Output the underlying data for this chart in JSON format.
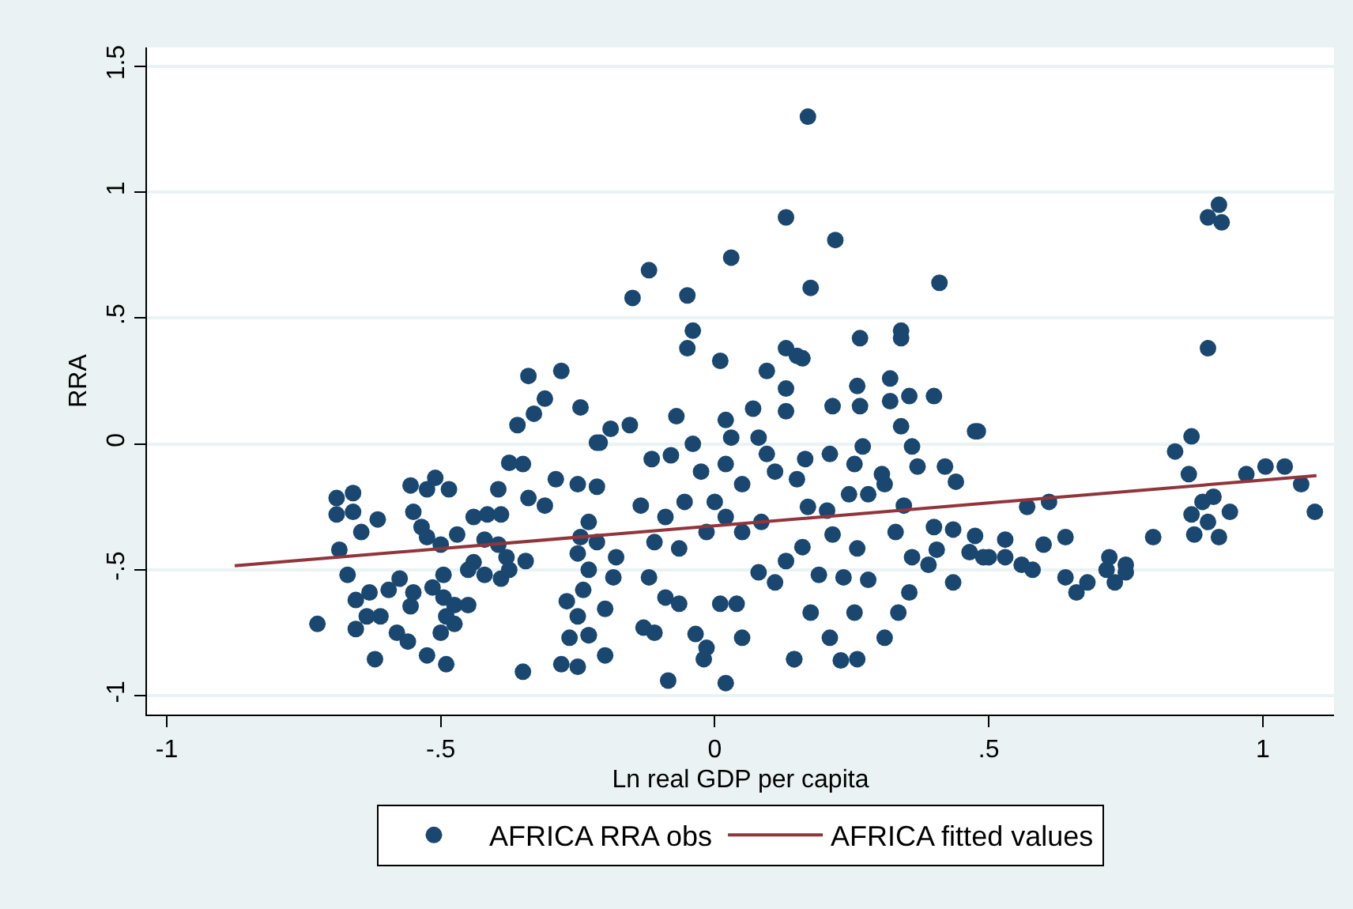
{
  "chart_data": {
    "type": "scatter",
    "xlabel": "Ln real GDP per capita",
    "ylabel": "RRA",
    "xlim": [
      -1.036,
      1.13
    ],
    "ylim": [
      -1.075,
      1.575
    ],
    "xticks": [
      -1,
      {
        "value": -0.5,
        "label": "-.5"
      },
      0,
      {
        "value": 0.5,
        "label": ".5"
      },
      1
    ],
    "yticks": [
      -1,
      {
        "value": -0.5,
        "label": "-.5"
      },
      0,
      {
        "value": 0.5,
        "label": ".5"
      },
      1,
      1.5
    ],
    "grid": "y",
    "legend": "bottom",
    "series": [
      {
        "name": "AFRICA RRA obs",
        "marker": "circle",
        "color": "#1a476f",
        "x": [
          0.92,
          0.9,
          0.925,
          0.9,
          0.48,
          0.87,
          0.84,
          0.865,
          0.97,
          1.005,
          1.04,
          1.07,
          1.095,
          0.89,
          0.91,
          0.87,
          0.94,
          0.9,
          0.875,
          0.92,
          0.8,
          0.57,
          0.61,
          0.53,
          0.5,
          0.53,
          0.56,
          0.58,
          0.6,
          0.64,
          0.64,
          0.66,
          0.68,
          0.72,
          0.715,
          0.73,
          0.75,
          0.75,
          0.22,
          0.175,
          0.41,
          0.265,
          0.34,
          0.34,
          0.26,
          0.32,
          0.215,
          0.265,
          0.32,
          0.355,
          0.4,
          0.34,
          0.475,
          0.16,
          0.27,
          0.36,
          0.21,
          0.42,
          0.44,
          0.37,
          0.305,
          0.245,
          0.17,
          0.28,
          0.4,
          0.435,
          0.405,
          0.39,
          0.435,
          0.475,
          0.465,
          0.49,
          0.355,
          0.335,
          0.31,
          0.26,
          0.23,
          0.21,
          0.145,
          0.175,
          0.255,
          0.28,
          0.235,
          0.19,
          0.26,
          0.215,
          0.33,
          0.36,
          0.16,
          0.165,
          0.255,
          0.31,
          0.345,
          0.205,
          0.17,
          0.13,
          0.03,
          -0.12,
          -0.15,
          -0.05,
          -0.04,
          -0.05,
          0.01,
          0.13,
          0.15,
          0.095,
          0.13,
          0.07,
          0.13,
          0.02,
          -0.07,
          -0.155,
          -0.19,
          -0.21,
          -0.115,
          -0.08,
          -0.04,
          0.03,
          0.08,
          0.095,
          -0.025,
          0.02,
          0.05,
          0.11,
          0.15,
          -0.215,
          -0.135,
          -0.09,
          -0.055,
          0.0,
          0.02,
          -0.015,
          -0.065,
          -0.11,
          -0.18,
          -0.215,
          -0.185,
          -0.12,
          -0.09,
          -0.065,
          0.01,
          0.04,
          0.08,
          0.11,
          0.13,
          0.05,
          0.085,
          -0.2,
          -0.13,
          -0.11,
          -0.035,
          -0.015,
          -0.02,
          0.05,
          0.145,
          -0.2,
          -0.085,
          0.02,
          -0.23,
          -0.34,
          -0.28,
          -0.31,
          -0.245,
          -0.36,
          -0.33,
          -0.215,
          -0.375,
          -0.35,
          -0.29,
          -0.395,
          -0.34,
          -0.31,
          -0.25,
          -0.69,
          -0.66,
          -0.69,
          -0.66,
          -0.645,
          -0.615,
          -0.555,
          -0.51,
          -0.525,
          -0.485,
          -0.55,
          -0.535,
          -0.525,
          -0.47,
          -0.5,
          -0.44,
          -0.415,
          -0.39,
          -0.42,
          -0.395,
          -0.38,
          -0.345,
          -0.375,
          -0.39,
          -0.42,
          -0.44,
          -0.685,
          -0.67,
          -0.655,
          -0.63,
          -0.595,
          -0.575,
          -0.635,
          -0.655,
          -0.61,
          -0.725,
          -0.58,
          -0.56,
          -0.62,
          -0.555,
          -0.55,
          -0.515,
          -0.495,
          -0.475,
          -0.45,
          -0.49,
          -0.475,
          -0.5,
          -0.525,
          -0.49,
          -0.45,
          -0.495,
          -0.35,
          -0.28,
          -0.25,
          -0.265,
          -0.23,
          -0.27,
          -0.25,
          -0.24,
          -0.23,
          -0.25,
          -0.245,
          -0.23
        ],
        "values": [
          0.95,
          0.9,
          0.88,
          0.38,
          0.05,
          0.03,
          -0.03,
          -0.12,
          -0.12,
          -0.09,
          -0.09,
          -0.16,
          -0.27,
          -0.23,
          -0.21,
          -0.28,
          -0.27,
          -0.31,
          -0.36,
          -0.37,
          -0.37,
          -0.25,
          -0.23,
          -0.38,
          -0.45,
          -0.45,
          -0.48,
          -0.5,
          -0.4,
          -0.37,
          -0.53,
          -0.59,
          -0.55,
          -0.45,
          -0.5,
          -0.55,
          -0.51,
          -0.48,
          0.81,
          0.62,
          0.64,
          0.42,
          0.45,
          0.42,
          0.23,
          0.26,
          0.15,
          0.15,
          0.17,
          0.19,
          0.19,
          0.07,
          0.05,
          0.34,
          -0.01,
          -0.01,
          -0.04,
          -0.09,
          -0.15,
          -0.09,
          -0.12,
          -0.2,
          -0.25,
          -0.2,
          -0.33,
          -0.34,
          -0.42,
          -0.48,
          -0.55,
          -0.365,
          -0.43,
          -0.45,
          -0.59,
          -0.67,
          -0.77,
          -0.855,
          -0.86,
          -0.77,
          -0.855,
          -0.67,
          -0.67,
          -0.54,
          -0.53,
          -0.52,
          -0.415,
          -0.36,
          -0.35,
          -0.45,
          -0.41,
          -0.06,
          -0.08,
          -0.16,
          -0.245,
          -0.265,
          1.3,
          0.9,
          0.74,
          0.69,
          0.58,
          0.59,
          0.45,
          0.38,
          0.33,
          0.38,
          0.35,
          0.29,
          0.22,
          0.14,
          0.13,
          0.095,
          0.11,
          0.075,
          0.06,
          0.005,
          -0.06,
          -0.045,
          0.0,
          0.025,
          0.025,
          -0.04,
          -0.11,
          -0.08,
          -0.16,
          -0.11,
          -0.14,
          -0.17,
          -0.245,
          -0.29,
          -0.23,
          -0.23,
          -0.29,
          -0.35,
          -0.415,
          -0.39,
          -0.45,
          -0.39,
          -0.53,
          -0.53,
          -0.61,
          -0.635,
          -0.635,
          -0.635,
          -0.51,
          -0.55,
          -0.465,
          -0.35,
          -0.31,
          -0.655,
          -0.73,
          -0.75,
          -0.755,
          -0.81,
          -0.855,
          -0.77,
          -0.855,
          -0.84,
          -0.94,
          -0.95,
          -0.76,
          0.27,
          0.29,
          0.18,
          0.145,
          0.075,
          0.12,
          0.005,
          -0.075,
          -0.08,
          -0.14,
          -0.18,
          -0.215,
          -0.245,
          -0.16,
          -0.215,
          -0.195,
          -0.28,
          -0.27,
          -0.35,
          -0.3,
          -0.165,
          -0.135,
          -0.18,
          -0.18,
          -0.27,
          -0.33,
          -0.37,
          -0.36,
          -0.4,
          -0.29,
          -0.28,
          -0.28,
          -0.38,
          -0.4,
          -0.45,
          -0.465,
          -0.5,
          -0.535,
          -0.52,
          -0.47,
          -0.42,
          -0.52,
          -0.62,
          -0.59,
          -0.58,
          -0.535,
          -0.685,
          -0.735,
          -0.685,
          -0.715,
          -0.75,
          -0.785,
          -0.855,
          -0.645,
          -0.59,
          -0.57,
          -0.61,
          -0.64,
          -0.64,
          -0.685,
          -0.715,
          -0.75,
          -0.84,
          -0.875,
          -0.5,
          -0.52,
          -0.905,
          -0.875,
          -0.885,
          -0.77,
          -0.76,
          -0.625,
          -0.685,
          -0.58,
          -0.5,
          -0.435,
          -0.37,
          -0.31
        ]
      },
      {
        "name": "AFRICA fitted values",
        "type": "line",
        "marker": "none",
        "color": "#90353b",
        "line_style": "solid",
        "x": [
          -0.876,
          1.098
        ],
        "values": [
          -0.484,
          -0.126
        ]
      }
    ]
  }
}
